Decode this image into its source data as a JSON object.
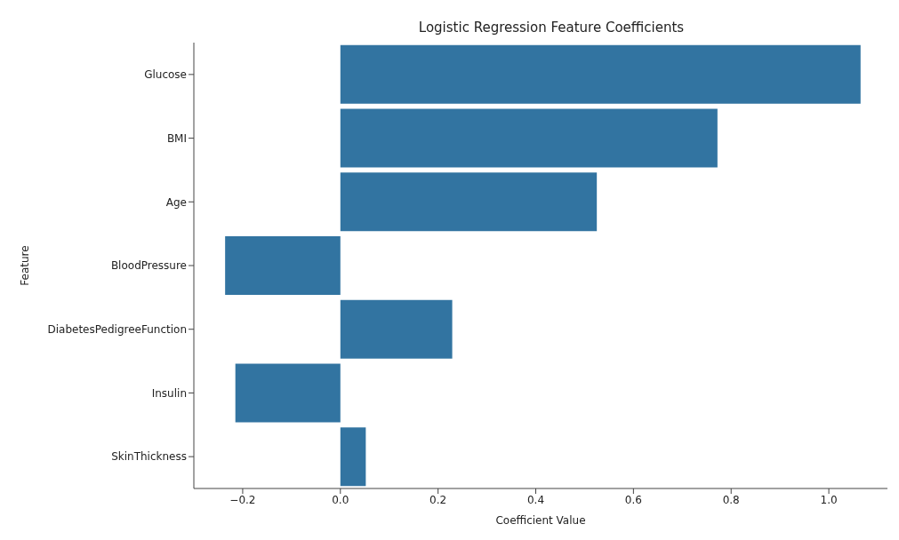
{
  "chart_data": {
    "type": "bar",
    "orientation": "horizontal",
    "title": "Logistic Regression Feature Coefficients",
    "xlabel": "Coefficient Value",
    "ylabel": "Feature",
    "categories": [
      "Glucose",
      "BMI",
      "Age",
      "BloodPressure",
      "DiabetesPedigreeFunction",
      "Insulin",
      "SkinThickness"
    ],
    "values": [
      1.065,
      0.772,
      0.525,
      -0.236,
      0.229,
      -0.215,
      0.052
    ],
    "color": "#3274a1",
    "xlim": [
      -0.3,
      1.12
    ],
    "xticks": [
      {
        "value": -0.2,
        "label": "−0.2"
      },
      {
        "value": 0,
        "label": "0.0"
      },
      {
        "value": 0.2,
        "label": "0.2"
      },
      {
        "value": 0.4,
        "label": "0.4"
      },
      {
        "value": 0.6,
        "label": "0.6"
      },
      {
        "value": 0.8,
        "label": "0.8"
      },
      {
        "value": 1,
        "label": "1.0"
      }
    ],
    "grid": false,
    "legend": false
  }
}
